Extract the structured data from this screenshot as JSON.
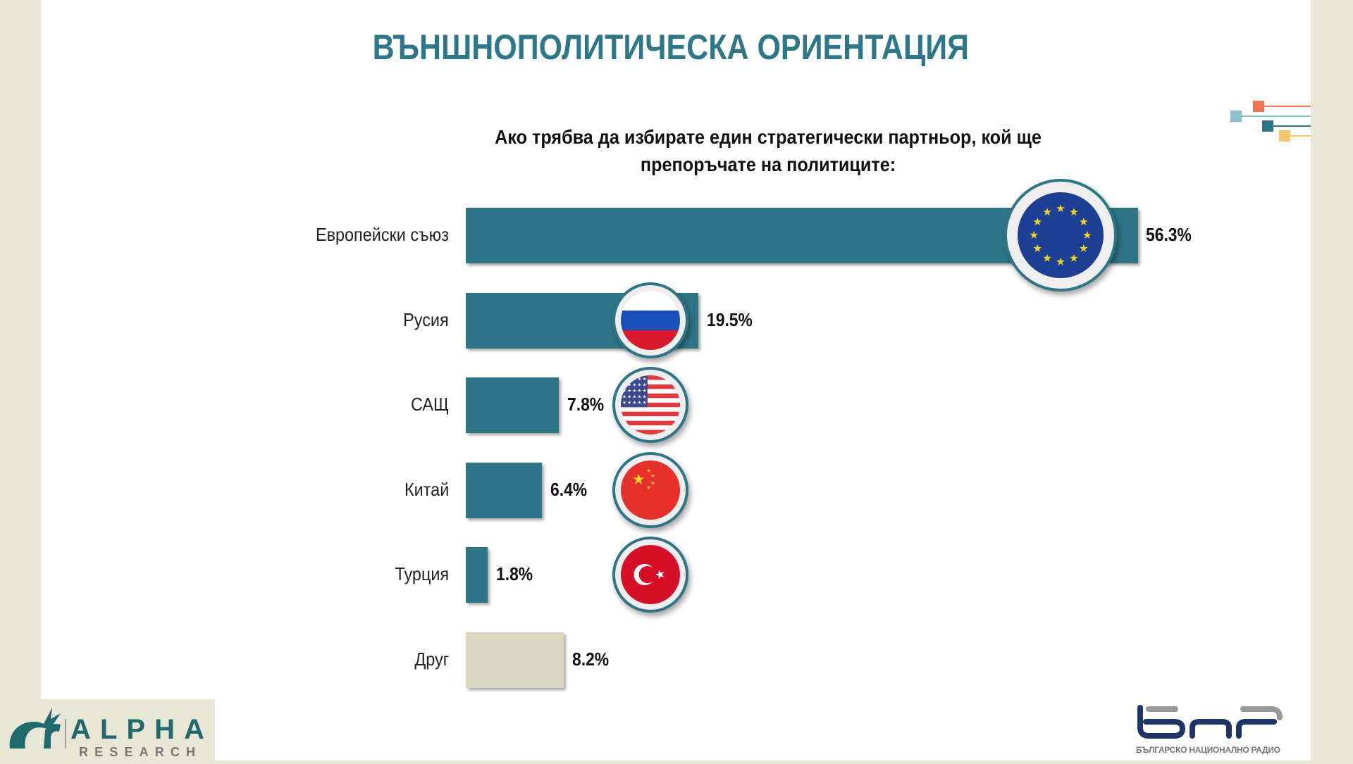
{
  "title": "ВЪНШНОПОЛИТИЧЕСКА ОРИЕНТАЦИЯ",
  "chart_data": {
    "type": "bar",
    "orientation": "horizontal",
    "title": "Ако трябва да избирате един стратегически партньор, кой ще препоръчате на политиците:",
    "title_lines": [
      "Ако трябва да избирате един стратегически партньор, кой ще",
      "препоръчате на политиците:"
    ],
    "categories": [
      "Европейски съюз",
      "Русия",
      "САЩ",
      "Китай",
      "Турция",
      "Друг"
    ],
    "values": [
      56.3,
      19.5,
      7.8,
      6.4,
      1.8,
      8.2
    ],
    "labels": [
      "56.3%",
      "19.5%",
      "7.8%",
      "6.4%",
      "1.8%",
      "8.2%"
    ],
    "flags": [
      "eu",
      "russia",
      "usa",
      "china",
      "turkey",
      null
    ],
    "colors": [
      "#2e7587",
      "#2e7587",
      "#2e7587",
      "#2e7587",
      "#2e7587",
      "#d9d8c1"
    ],
    "xlabel": "",
    "ylabel": "",
    "xlim": [
      0,
      56.3
    ],
    "grid": false
  },
  "logos": {
    "alpha": {
      "name": "ALPHA",
      "sub": "RESEARCH",
      "mark": "ar"
    },
    "bnr": {
      "name": "бнр",
      "sub": "БЪЛГАРСКО НАЦИОНАЛНО РАДИО"
    }
  },
  "decoration_colors": [
    "#ef7557",
    "#88c2cc",
    "#2e7587",
    "#f5c66a"
  ]
}
